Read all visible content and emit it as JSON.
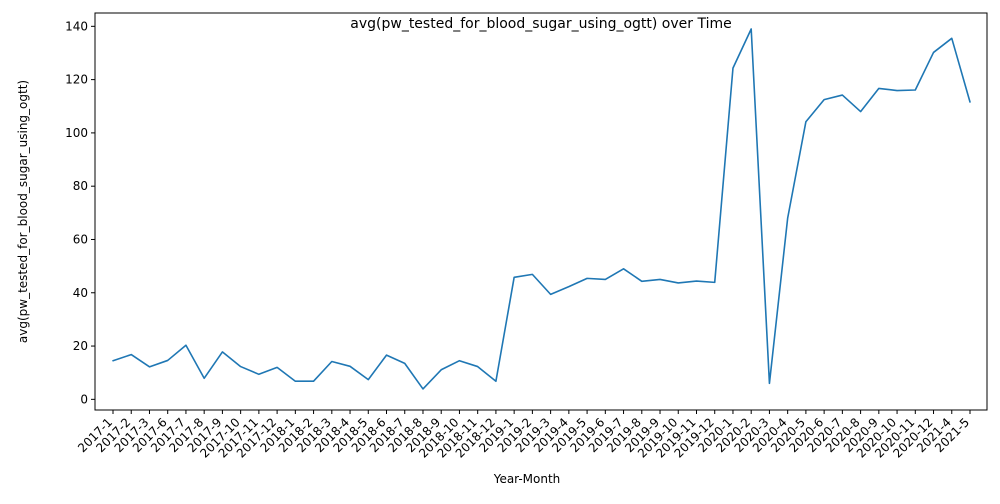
{
  "chart_data": {
    "type": "line",
    "title": "avg(pw_tested_for_blood_sugar_using_ogtt) over Time",
    "xlabel": "Year-Month",
    "ylabel": "avg(pw_tested_for_blood_sugar_using_ogtt)",
    "ylim": [
      -4,
      145
    ],
    "yticks": [
      0,
      20,
      40,
      60,
      80,
      100,
      120,
      140
    ],
    "grid": false,
    "legend": "none",
    "line_color": "#1f77b4",
    "categories": [
      "2017-1",
      "2017-2",
      "2017-3",
      "2017-6",
      "2017-7",
      "2017-8",
      "2017-9",
      "2017-10",
      "2017-11",
      "2017-12",
      "2018-1",
      "2018-2",
      "2018-3",
      "2018-4",
      "2018-5",
      "2018-6",
      "2018-7",
      "2018-8",
      "2018-9",
      "2018-10",
      "2018-11",
      "2018-12",
      "2019-1",
      "2019-2",
      "2019-3",
      "2019-4",
      "2019-5",
      "2019-6",
      "2019-7",
      "2019-8",
      "2019-9",
      "2019-10",
      "2019-11",
      "2019-12",
      "2020-1",
      "2020-2",
      "2020-3",
      "2020-4",
      "2020-5",
      "2020-6",
      "2020-7",
      "2020-8",
      "2020-9",
      "2020-10",
      "2020-11",
      "2020-12",
      "2021-4",
      "2021-5"
    ],
    "series": [
      {
        "values": [
          14.5,
          16.8,
          12.2,
          14.6,
          20.3,
          7.9,
          17.8,
          12.3,
          9.4,
          12.0,
          6.8,
          6.8,
          14.2,
          12.4,
          7.4,
          16.6,
          13.5,
          3.9,
          11.1,
          14.5,
          12.3,
          6.8,
          45.8,
          46.9,
          39.4,
          42.3,
          45.4,
          45.0,
          49.0,
          44.3,
          45.0,
          43.7,
          44.4,
          43.9,
          124.3,
          139.0,
          6.0,
          68.0,
          104.2,
          112.5,
          114.2,
          108.0,
          116.7,
          115.9,
          116.1,
          130.2,
          135.5,
          111.6
        ]
      }
    ]
  }
}
